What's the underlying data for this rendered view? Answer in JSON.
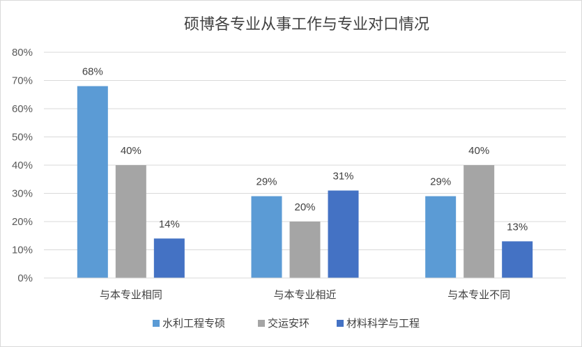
{
  "chart_data": {
    "type": "bar",
    "title": "硕博各专业从事工作与专业对口情况",
    "xlabel": "",
    "ylabel": "",
    "categories": [
      "与本专业相同",
      "与本专业相近",
      "与本专业不同"
    ],
    "series": [
      {
        "name": "水利工程专硕",
        "color": "#5b9bd5",
        "values": [
          68,
          29,
          29
        ],
        "labels": [
          "68%",
          "29%",
          "29%"
        ]
      },
      {
        "name": "交运安环",
        "color": "#a5a5a5",
        "values": [
          40,
          20,
          40
        ],
        "labels": [
          "40%",
          "20%",
          "40%"
        ]
      },
      {
        "name": "材料科学与工程",
        "color": "#4472c4",
        "values": [
          14,
          31,
          13
        ],
        "labels": [
          "14%",
          "31%",
          "13%"
        ]
      }
    ],
    "ylim": [
      0,
      80
    ],
    "yticks": [
      "0%",
      "10%",
      "20%",
      "30%",
      "40%",
      "50%",
      "60%",
      "70%",
      "80%"
    ],
    "grid": true,
    "legend_position": "bottom"
  }
}
